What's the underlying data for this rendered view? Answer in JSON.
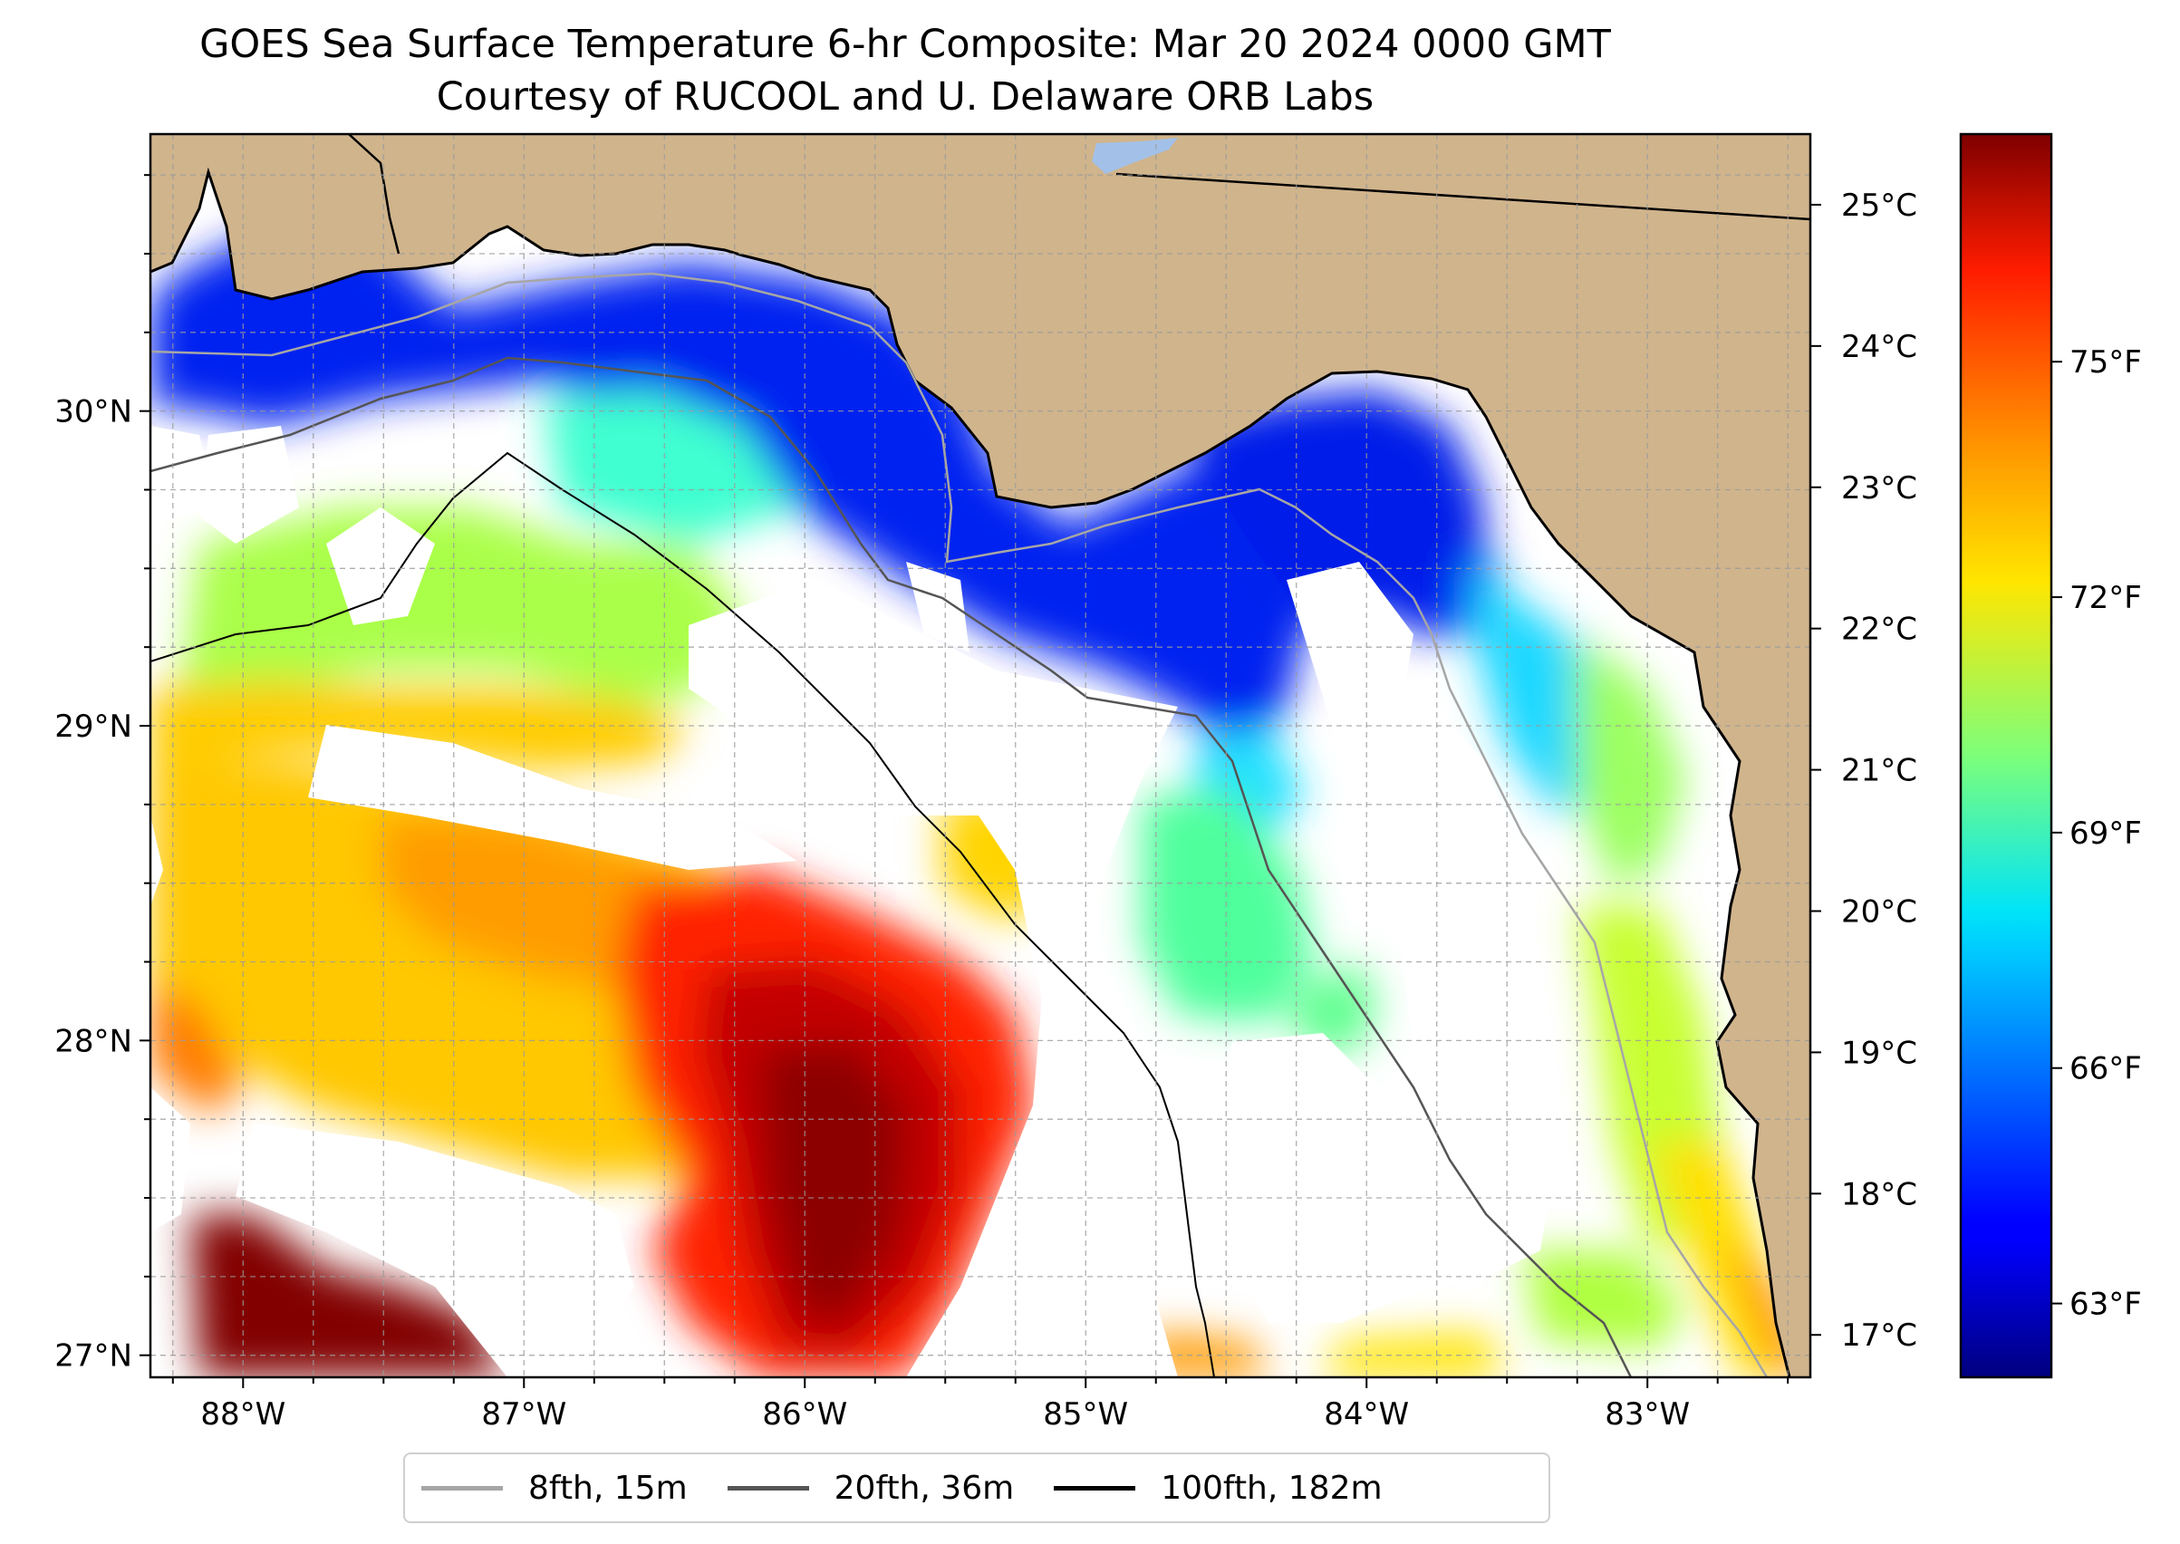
{
  "title": {
    "line1": "GOES Sea Surface Temperature 6-hr Composite: Mar 20 2024 0000 GMT",
    "line2": "Courtesy of RUCOOL and U. Delaware ORB Labs"
  },
  "map": {
    "lon_range": [
      -88.33,
      -82.42
    ],
    "lat_range": [
      26.93,
      30.88
    ],
    "lon_ticks": [
      {
        "value": -88,
        "label": "88°W"
      },
      {
        "value": -87,
        "label": "87°W"
      },
      {
        "value": -86,
        "label": "86°W"
      },
      {
        "value": -85,
        "label": "85°W"
      },
      {
        "value": -84,
        "label": "84°W"
      },
      {
        "value": -83,
        "label": "83°W"
      }
    ],
    "lat_ticks": [
      {
        "value": 30,
        "label": "30°N"
      },
      {
        "value": 29,
        "label": "29°N"
      },
      {
        "value": 28,
        "label": "28°N"
      },
      {
        "value": 27,
        "label": "27°N"
      }
    ],
    "grid": "dashed gray, every 0.25°",
    "land_color": "#d0b48c",
    "no_data_color": "#ffffff"
  },
  "colorbar": {
    "colormap": "jet",
    "range_c": [
      16.7,
      25.5
    ],
    "celsius_ticks": [
      "25°C",
      "24°C",
      "23°C",
      "22°C",
      "21°C",
      "20°C",
      "19°C",
      "18°C",
      "17°C"
    ],
    "celsius_values": [
      25,
      24,
      23,
      22,
      21,
      20,
      19,
      18,
      17
    ],
    "fahrenheit_ticks": [
      "75°F",
      "72°F",
      "69°F",
      "66°F",
      "63°F"
    ],
    "fahrenheit_values": [
      75,
      72,
      69,
      66,
      63
    ]
  },
  "legend": {
    "placement": "bottom-center",
    "items": [
      {
        "label": "8fth, 15m",
        "color": "#a6a6a6"
      },
      {
        "label": "20fth, 36m",
        "color": "#555555"
      },
      {
        "label": "100fth, 182m",
        "color": "#000000"
      }
    ]
  }
}
